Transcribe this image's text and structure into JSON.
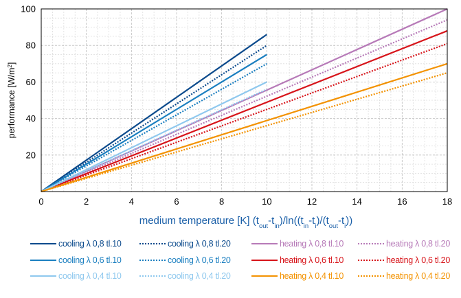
{
  "chart_data": {
    "type": "line",
    "ylabel_main": "performance [W/m",
    "ylabel_sup": "2",
    "ylabel_end": "]",
    "xlabel_parts": [
      "medium temperature [K] (t",
      "out",
      "-t",
      "in",
      ")/ln((t",
      "in",
      "-t",
      "i",
      ")/(t",
      "out",
      "-t",
      "i",
      "))"
    ],
    "xlim": [
      0,
      18
    ],
    "ylim": [
      0,
      100
    ],
    "xticks": [
      "0",
      "2",
      "4",
      "6",
      "8",
      "10",
      "12",
      "14",
      "16",
      "18"
    ],
    "yticks": [
      "20",
      "40",
      "60",
      "80",
      "100"
    ],
    "grid": true,
    "legend_position": "bottom",
    "series": [
      {
        "name": "cooling λ 0,8 tl.10",
        "color": "#0b4a8c",
        "style": "solid",
        "x": [
          0,
          10
        ],
        "y": [
          0,
          86
        ]
      },
      {
        "name": "cooling λ 0,8 tl.20",
        "color": "#0b4a8c",
        "style": "dotted",
        "x": [
          0,
          10
        ],
        "y": [
          0,
          80
        ]
      },
      {
        "name": "heating λ 0,8 tl.10",
        "color": "#b77ab8",
        "style": "solid",
        "x": [
          0,
          18
        ],
        "y": [
          0,
          100
        ]
      },
      {
        "name": "heating λ 0,8 tl.20",
        "color": "#b77ab8",
        "style": "dotted",
        "x": [
          0,
          18
        ],
        "y": [
          0,
          94
        ]
      },
      {
        "name": "cooling λ 0,6 tl.10",
        "color": "#1b7fc0",
        "style": "solid",
        "x": [
          0,
          10
        ],
        "y": [
          0,
          75
        ]
      },
      {
        "name": "cooling λ 0,6 tl.20",
        "color": "#1b7fc0",
        "style": "dotted",
        "x": [
          0,
          10
        ],
        "y": [
          0,
          70
        ]
      },
      {
        "name": "heating λ 0,6 tl.10",
        "color": "#d7141a",
        "style": "solid",
        "x": [
          0,
          18
        ],
        "y": [
          0,
          88
        ]
      },
      {
        "name": "heating λ 0,6 tl.20",
        "color": "#d7141a",
        "style": "dotted",
        "x": [
          0,
          18
        ],
        "y": [
          0,
          81
        ]
      },
      {
        "name": "cooling λ 0,4 tl.10",
        "color": "#8ec8ee",
        "style": "solid",
        "x": [
          0,
          10
        ],
        "y": [
          0,
          60
        ]
      },
      {
        "name": "cooling λ 0,4 tl.20",
        "color": "#8ec8ee",
        "style": "dotted",
        "x": [
          0,
          10
        ],
        "y": [
          0,
          56
        ]
      },
      {
        "name": "heating λ 0,4 tl.10",
        "color": "#f39200",
        "style": "solid",
        "x": [
          0,
          18
        ],
        "y": [
          0,
          70
        ]
      },
      {
        "name": "heating λ 0,4 tl.20",
        "color": "#f39200",
        "style": "dotted",
        "x": [
          0,
          18
        ],
        "y": [
          0,
          65
        ]
      }
    ]
  }
}
